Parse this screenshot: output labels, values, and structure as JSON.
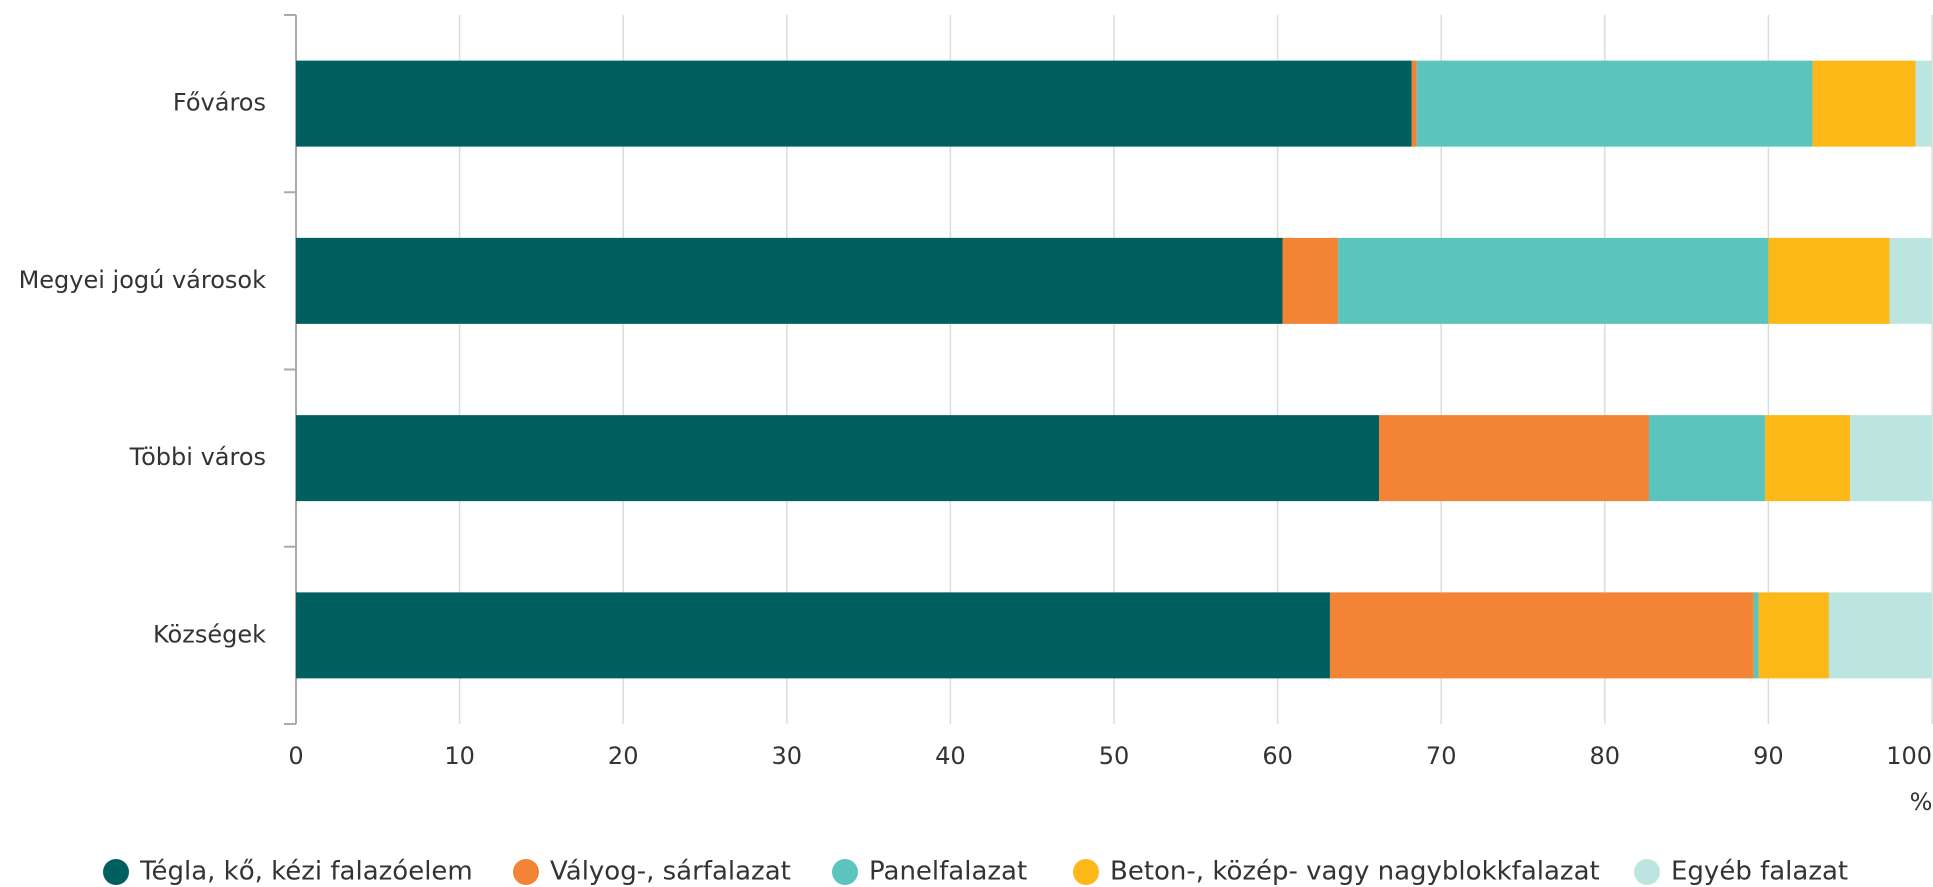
{
  "chart_data": {
    "type": "stacked_barh",
    "categories": [
      "Főváros",
      "Megyei jogú városok",
      "Többi város",
      "Községek"
    ],
    "series": [
      {
        "name": "Tégla, kő, kézi falazóelem",
        "color": "#006060",
        "values": [
          68.2,
          60.3,
          66.2,
          63.2
        ]
      },
      {
        "name": "Vályog-, sárfalazat",
        "color": "#f38335",
        "values": [
          0.3,
          3.4,
          16.5,
          25.9
        ]
      },
      {
        "name": "Panelfalazat",
        "color": "#5bc5bd",
        "values": [
          24.2,
          26.3,
          7.1,
          0.3
        ]
      },
      {
        "name": "Beton-, közép- vagy nagyblokkfalazat",
        "color": "#fbb817",
        "values": [
          6.3,
          7.4,
          5.2,
          4.3
        ]
      },
      {
        "name": "Egyéb falazat",
        "color": "#bde5e0",
        "values": [
          1.0,
          2.6,
          5.0,
          6.3
        ]
      }
    ],
    "xlabel": "%",
    "xlim": [
      0,
      100
    ],
    "xticks": [
      0,
      10,
      20,
      30,
      40,
      50,
      60,
      70,
      80,
      90,
      100
    ],
    "grid": true,
    "legend": "bottom"
  }
}
